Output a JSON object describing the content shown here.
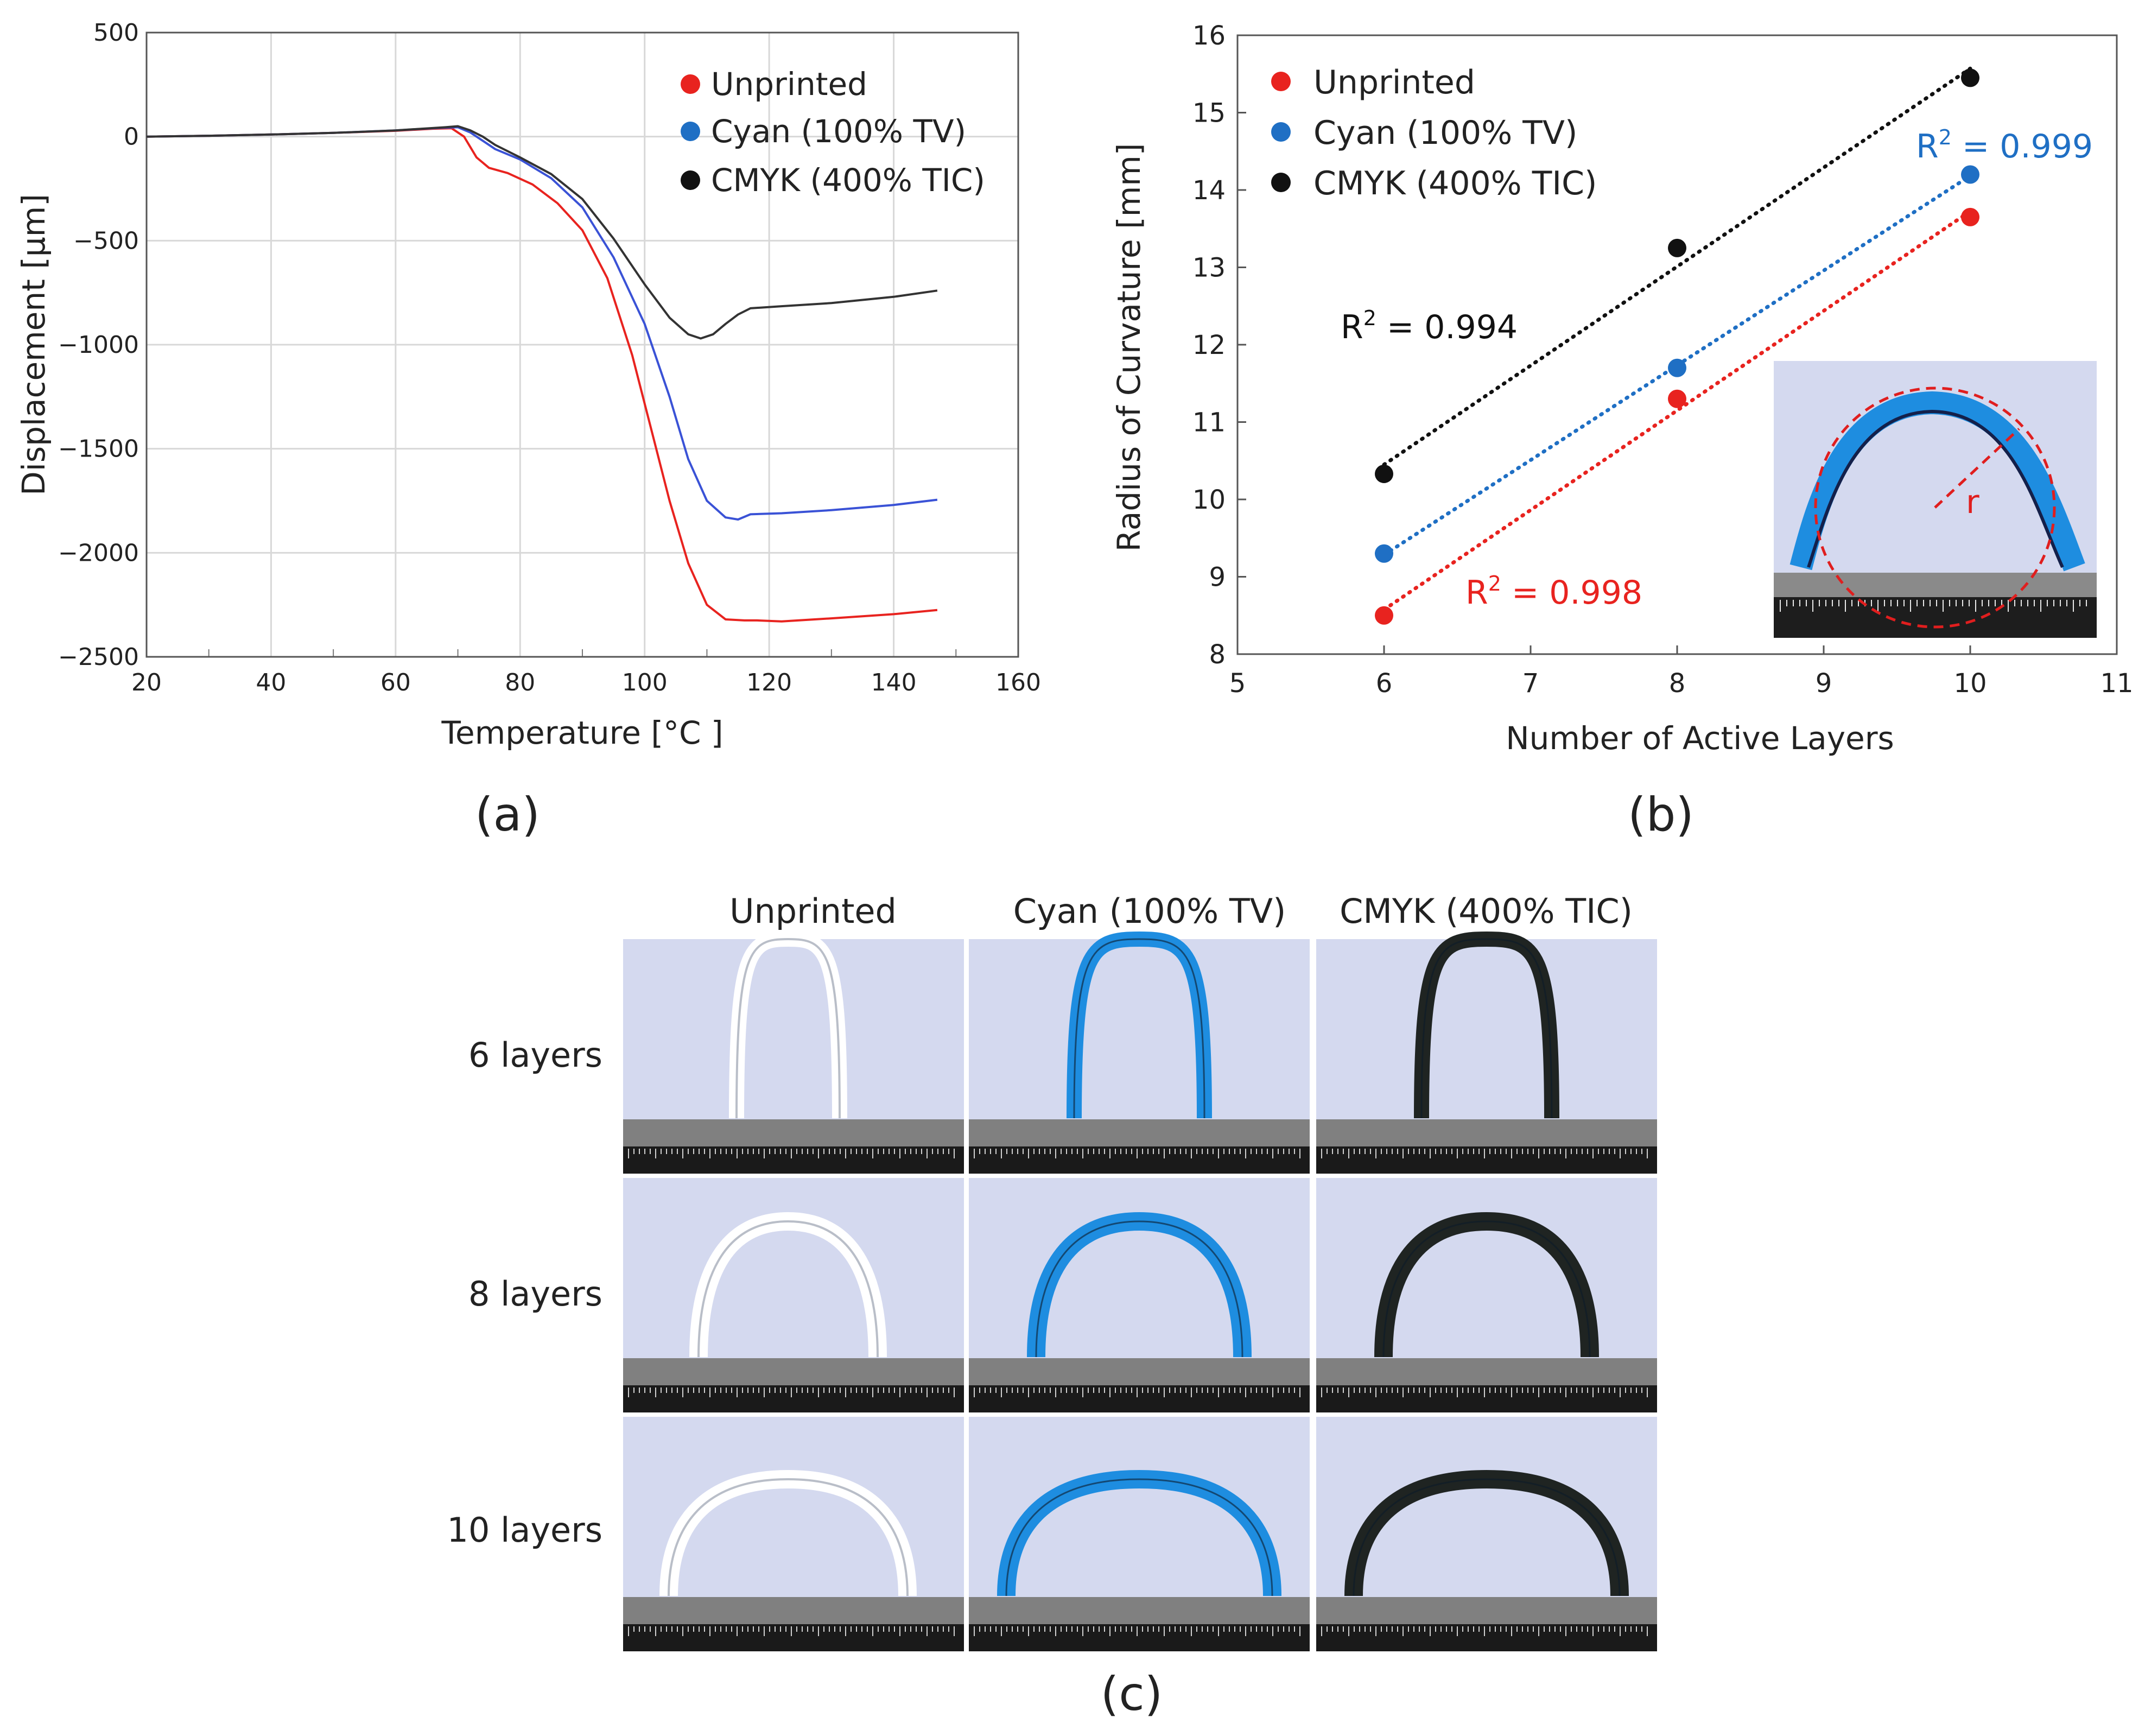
{
  "chart_data": [
    {
      "type": "line",
      "panel": "(a)",
      "xlabel": "Temperature [°C ]",
      "ylabel": "Displacement [μm]",
      "xlim": [
        20,
        160
      ],
      "ylim": [
        -2500,
        500
      ],
      "xticks": [
        20,
        40,
        60,
        80,
        100,
        120,
        140,
        160
      ],
      "yticks": [
        500,
        0,
        -500,
        -1000,
        -1500,
        -2000,
        -2500
      ],
      "ytick_labels": [
        "500",
        "0",
        "−500",
        "−1000",
        "−1500",
        "−2000",
        "−2500"
      ],
      "grid": true,
      "legend_position": "top-right",
      "series": [
        {
          "name": "Unprinted",
          "color": "#e8231f",
          "x": [
            20,
            30,
            40,
            50,
            60,
            66,
            69,
            71,
            73,
            75,
            78,
            82,
            86,
            90,
            94,
            98,
            101,
            104,
            107,
            110,
            113,
            116,
            118,
            122,
            130,
            140,
            147
          ],
          "y": [
            0,
            4,
            10,
            18,
            28,
            38,
            40,
            0,
            -100,
            -150,
            -175,
            -230,
            -320,
            -450,
            -680,
            -1050,
            -1400,
            -1750,
            -2050,
            -2250,
            -2320,
            -2325,
            -2325,
            -2330,
            -2315,
            -2295,
            -2275
          ]
        },
        {
          "name": "Cyan (100% TV)",
          "color": "#3a52d6",
          "x": [
            20,
            30,
            40,
            50,
            60,
            67,
            70,
            72,
            74,
            76,
            80,
            85,
            90,
            95,
            100,
            104,
            107,
            110,
            113,
            115,
            117,
            122,
            130,
            140,
            147
          ],
          "y": [
            0,
            4,
            10,
            18,
            30,
            42,
            45,
            20,
            -20,
            -60,
            -110,
            -200,
            -340,
            -580,
            -900,
            -1250,
            -1550,
            -1750,
            -1830,
            -1840,
            -1815,
            -1810,
            -1795,
            -1770,
            -1745
          ]
        },
        {
          "name": "CMYK (400% TIC)",
          "color": "#333333",
          "x": [
            20,
            30,
            40,
            50,
            60,
            68,
            70,
            72,
            74,
            76,
            80,
            85,
            90,
            95,
            100,
            104,
            107,
            109,
            111,
            113,
            115,
            117,
            122,
            130,
            140,
            147
          ],
          "y": [
            0,
            4,
            10,
            18,
            30,
            45,
            50,
            30,
            0,
            -40,
            -100,
            -180,
            -300,
            -490,
            -710,
            -870,
            -950,
            -970,
            -950,
            -900,
            -855,
            -825,
            -815,
            -800,
            -770,
            -740
          ]
        }
      ]
    },
    {
      "type": "scatter",
      "panel": "(b)",
      "xlabel": "Number of Active Layers",
      "ylabel": "Radius of Curvature [mm]",
      "xlim": [
        5,
        11
      ],
      "ylim": [
        8,
        16
      ],
      "xticks": [
        5,
        6,
        7,
        8,
        9,
        10,
        11
      ],
      "yticks": [
        8,
        9,
        10,
        11,
        12,
        13,
        14,
        15,
        16
      ],
      "grid": false,
      "legend_position": "top-left",
      "series": [
        {
          "name": "Unprinted",
          "color": "#e8231f",
          "x": [
            6,
            8,
            10
          ],
          "y": [
            8.5,
            11.3,
            13.65
          ],
          "r2_prefix": "R",
          "r2_sup": "2",
          "r2_value": " = 0.998"
        },
        {
          "name": "Cyan (100% TV)",
          "color": "#1f6fc4",
          "x": [
            6,
            8,
            10
          ],
          "y": [
            9.3,
            11.7,
            14.2
          ],
          "r2_prefix": "R",
          "r2_sup": "2",
          "r2_value": " = 0.999"
        },
        {
          "name": "CMYK (400% TIC)",
          "color": "#111111",
          "x": [
            6,
            8,
            10
          ],
          "y": [
            10.33,
            13.25,
            15.45
          ],
          "r2_prefix": "R",
          "r2_sup": "2",
          "r2_value": " = 0.994"
        }
      ],
      "inset": {
        "label": "r"
      }
    }
  ],
  "panel_labels": {
    "a": "(a)",
    "b": "(b)",
    "c": "(c)"
  },
  "photo_grid": {
    "columns": [
      "Unprinted",
      "Cyan (100% TV)",
      "CMYK (400% TIC)"
    ],
    "rows": [
      "6 layers",
      "8 layers",
      "10 layers"
    ],
    "colors": {
      "unprinted": "#f4f6fa",
      "cyan": "#1e8de0",
      "cmyk": "#1f2422",
      "background": "#d4d9ef",
      "ruler": "#808080"
    }
  }
}
